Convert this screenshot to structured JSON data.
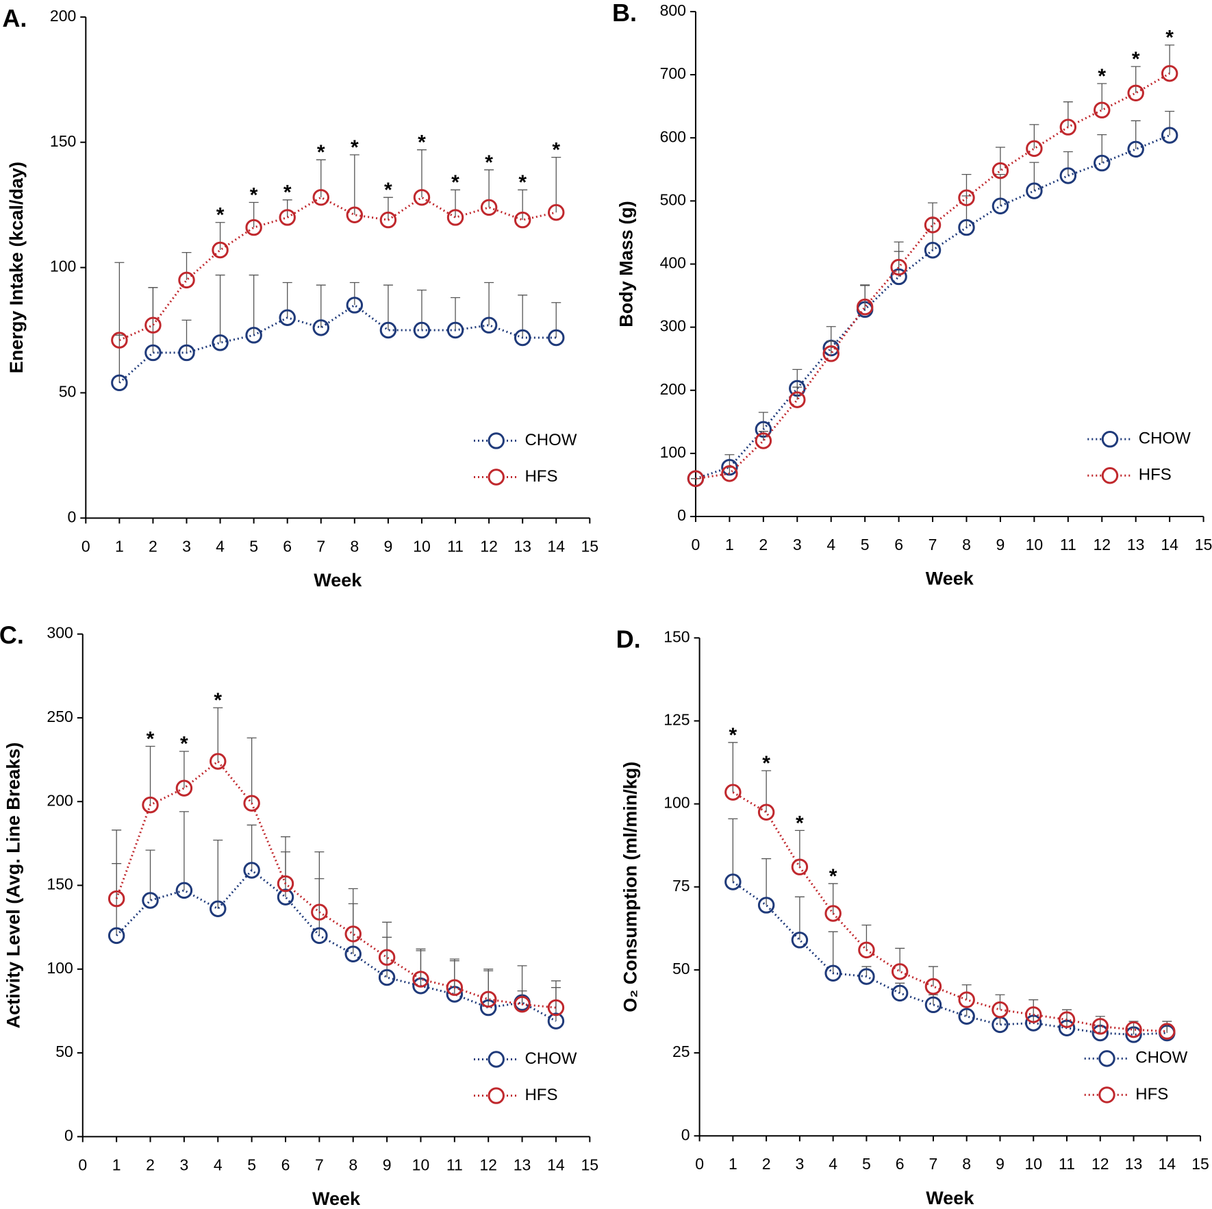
{
  "chart_data": [
    {
      "type": "line",
      "panel_label": "A.",
      "xlabel": "Week",
      "ylabel": "Energy Intake (kcal/day)",
      "x": [
        1,
        2,
        3,
        4,
        5,
        6,
        7,
        8,
        9,
        10,
        11,
        12,
        13,
        14
      ],
      "xlim": [
        0,
        15
      ],
      "xticks": [
        0,
        1,
        2,
        3,
        4,
        5,
        6,
        7,
        8,
        9,
        10,
        11,
        12,
        13,
        14,
        15
      ],
      "ylim": [
        0,
        200
      ],
      "yticks": [
        0,
        50,
        100,
        150,
        200
      ],
      "legend": "lower right",
      "series": [
        {
          "name": "CHOW",
          "color": "#1f3a7a",
          "values": [
            54,
            66,
            66,
            70,
            73,
            80,
            76,
            85,
            75,
            75,
            75,
            77,
            72,
            72
          ],
          "errors": [
            48,
            26,
            13,
            27,
            24,
            14,
            17,
            9,
            18,
            16,
            13,
            17,
            17,
            14
          ]
        },
        {
          "name": "HFS",
          "color": "#c0282d",
          "values": [
            71,
            77,
            95,
            107,
            116,
            120,
            128,
            121,
            119,
            128,
            120,
            124,
            119,
            122
          ],
          "errors": [
            2,
            15,
            11,
            11,
            10,
            7,
            15,
            24,
            9,
            19,
            11,
            15,
            12,
            22
          ]
        }
      ],
      "annotations": [
        {
          "x": 4,
          "text": "*"
        },
        {
          "x": 5,
          "text": "*"
        },
        {
          "x": 6,
          "text": "*"
        },
        {
          "x": 7,
          "text": "*"
        },
        {
          "x": 8,
          "text": "*"
        },
        {
          "x": 9,
          "text": "*"
        },
        {
          "x": 10,
          "text": "*"
        },
        {
          "x": 11,
          "text": "*"
        },
        {
          "x": 12,
          "text": "*"
        },
        {
          "x": 13,
          "text": "*"
        },
        {
          "x": 14,
          "text": "*"
        }
      ]
    },
    {
      "type": "line",
      "panel_label": "B.",
      "xlabel": "Week",
      "ylabel": "Body Mass (g)",
      "x": [
        0,
        1,
        2,
        3,
        4,
        5,
        6,
        7,
        8,
        9,
        10,
        11,
        12,
        13,
        14
      ],
      "xlim": [
        0,
        15
      ],
      "xticks": [
        0,
        1,
        2,
        3,
        4,
        5,
        6,
        7,
        8,
        9,
        10,
        11,
        12,
        13,
        14,
        15
      ],
      "ylim": [
        0,
        800
      ],
      "yticks": [
        0,
        100,
        200,
        300,
        400,
        500,
        600,
        700,
        800
      ],
      "legend": "lower right",
      "series": [
        {
          "name": "CHOW",
          "color": "#1f3a7a",
          "values": [
            60,
            78,
            138,
            203,
            267,
            328,
            380,
            422,
            458,
            492,
            516,
            540,
            560,
            582,
            604
          ],
          "errors": [
            0,
            20,
            27,
            30,
            34,
            38,
            40,
            50,
            50,
            50,
            45,
            38,
            45,
            45,
            38
          ]
        },
        {
          "name": "HFS",
          "color": "#c0282d",
          "values": [
            60,
            68,
            120,
            185,
            258,
            332,
            395,
            462,
            505,
            548,
            583,
            617,
            644,
            671,
            702
          ],
          "errors": [
            0,
            10,
            15,
            20,
            20,
            35,
            40,
            35,
            37,
            37,
            38,
            40,
            42,
            42,
            45
          ]
        }
      ],
      "annotations": [
        {
          "x": 12,
          "text": "*"
        },
        {
          "x": 13,
          "text": "*"
        },
        {
          "x": 14,
          "text": "*"
        }
      ]
    },
    {
      "type": "line",
      "panel_label": "C.",
      "xlabel": "Week",
      "ylabel": "Activity Level (Avg. Line Breaks)",
      "x": [
        1,
        2,
        3,
        4,
        5,
        6,
        7,
        8,
        9,
        10,
        11,
        12,
        13,
        14
      ],
      "xlim": [
        0,
        15
      ],
      "xticks": [
        0,
        1,
        2,
        3,
        4,
        5,
        6,
        7,
        8,
        9,
        10,
        11,
        12,
        13,
        14,
        15
      ],
      "ylim": [
        0,
        300
      ],
      "yticks": [
        0,
        50,
        100,
        150,
        200,
        250,
        300
      ],
      "legend": "lower right",
      "series": [
        {
          "name": "CHOW",
          "color": "#1f3a7a",
          "values": [
            120,
            141,
            147,
            136,
            159,
            143,
            120,
            109,
            95,
            90,
            85,
            77,
            80,
            69
          ],
          "errors": [
            43,
            30,
            47,
            41,
            27,
            27,
            34,
            30,
            24,
            21,
            20,
            22,
            7,
            20
          ]
        },
        {
          "name": "HFS",
          "color": "#c0282d",
          "values": [
            142,
            198,
            208,
            224,
            199,
            151,
            134,
            121,
            107,
            94,
            89,
            82,
            79,
            77
          ],
          "errors": [
            41,
            35,
            22,
            32,
            39,
            28,
            36,
            27,
            21,
            18,
            17,
            18,
            23,
            16
          ]
        }
      ],
      "annotations": [
        {
          "x": 2,
          "text": "*"
        },
        {
          "x": 3,
          "text": "*"
        },
        {
          "x": 4,
          "text": "*"
        }
      ]
    },
    {
      "type": "line",
      "panel_label": "D.",
      "xlabel": "Week",
      "ylabel": "O₂ Consumption (ml/min/kg)",
      "x": [
        1,
        2,
        3,
        4,
        5,
        6,
        7,
        8,
        9,
        10,
        11,
        12,
        13,
        14
      ],
      "xlim": [
        0,
        15
      ],
      "xticks": [
        0,
        1,
        2,
        3,
        4,
        5,
        6,
        7,
        8,
        9,
        10,
        11,
        12,
        13,
        14,
        15
      ],
      "ylim": [
        0,
        150
      ],
      "yticks": [
        0,
        25,
        50,
        75,
        100,
        125,
        150
      ],
      "legend": "lower right",
      "series": [
        {
          "name": "CHOW",
          "color": "#1f3a7a",
          "values": [
            76.5,
            69.5,
            59,
            49,
            48,
            43,
            39.5,
            36,
            33.5,
            34,
            32.5,
            31,
            30.5,
            31
          ],
          "errors": [
            19,
            14,
            13,
            12.5,
            3,
            3,
            3,
            3,
            2,
            2,
            2,
            2,
            2,
            2
          ]
        },
        {
          "name": "HFS",
          "color": "#c0282d",
          "values": [
            103.5,
            97.5,
            81,
            67,
            56,
            49.5,
            45,
            41,
            38,
            36.5,
            35,
            33,
            32,
            31.5
          ],
          "errors": [
            15,
            12.5,
            11,
            9,
            7.5,
            7,
            6,
            4.5,
            4.5,
            4.5,
            3,
            3,
            2.5,
            3
          ]
        }
      ],
      "annotations": [
        {
          "x": 1,
          "text": "*"
        },
        {
          "x": 2,
          "text": "*"
        },
        {
          "x": 3,
          "text": "*"
        },
        {
          "x": 4,
          "text": "*"
        }
      ]
    }
  ]
}
